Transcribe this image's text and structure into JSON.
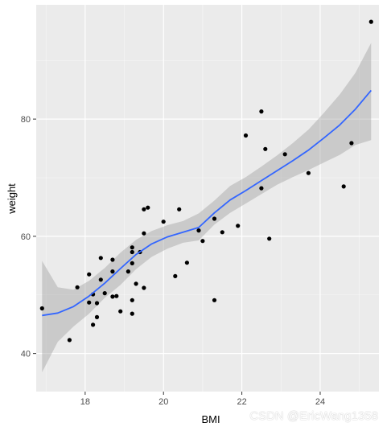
{
  "chart_data": {
    "type": "scatter",
    "title": "",
    "xlabel": "BMI",
    "ylabel": "weight",
    "xlim": [
      16.75,
      25.5
    ],
    "ylim": [
      33.5,
      99.5
    ],
    "x_ticks": [
      18,
      20,
      22,
      24
    ],
    "y_ticks": [
      40,
      60,
      80
    ],
    "x_tick_labels": [
      "18",
      "20",
      "22",
      "24"
    ],
    "y_tick_labels": [
      "40",
      "60",
      "80"
    ],
    "grid": true,
    "legend": "none",
    "points": [
      {
        "x": 16.9,
        "y": 47.7
      },
      {
        "x": 17.6,
        "y": 42.3
      },
      {
        "x": 17.8,
        "y": 51.3
      },
      {
        "x": 18.1,
        "y": 53.5
      },
      {
        "x": 18.1,
        "y": 48.7
      },
      {
        "x": 18.2,
        "y": 50.1
      },
      {
        "x": 18.2,
        "y": 44.9
      },
      {
        "x": 18.3,
        "y": 48.6
      },
      {
        "x": 18.3,
        "y": 46.2
      },
      {
        "x": 18.4,
        "y": 56.3
      },
      {
        "x": 18.4,
        "y": 52.6
      },
      {
        "x": 18.5,
        "y": 50.3
      },
      {
        "x": 18.7,
        "y": 56.0
      },
      {
        "x": 18.7,
        "y": 54.0
      },
      {
        "x": 18.7,
        "y": 49.7
      },
      {
        "x": 18.8,
        "y": 49.8
      },
      {
        "x": 18.9,
        "y": 47.2
      },
      {
        "x": 19.1,
        "y": 54.0
      },
      {
        "x": 19.2,
        "y": 58.1
      },
      {
        "x": 19.2,
        "y": 57.3
      },
      {
        "x": 19.2,
        "y": 55.4
      },
      {
        "x": 19.2,
        "y": 49.1
      },
      {
        "x": 19.2,
        "y": 46.8
      },
      {
        "x": 19.3,
        "y": 51.9
      },
      {
        "x": 19.4,
        "y": 57.3
      },
      {
        "x": 19.5,
        "y": 64.6
      },
      {
        "x": 19.5,
        "y": 60.5
      },
      {
        "x": 19.5,
        "y": 51.2
      },
      {
        "x": 19.6,
        "y": 64.9
      },
      {
        "x": 20.0,
        "y": 62.5
      },
      {
        "x": 20.3,
        "y": 53.2
      },
      {
        "x": 20.4,
        "y": 64.6
      },
      {
        "x": 20.6,
        "y": 55.5
      },
      {
        "x": 20.9,
        "y": 61.0
      },
      {
        "x": 21.0,
        "y": 59.2
      },
      {
        "x": 21.3,
        "y": 63.0
      },
      {
        "x": 21.3,
        "y": 49.1
      },
      {
        "x": 21.5,
        "y": 60.7
      },
      {
        "x": 21.9,
        "y": 61.8
      },
      {
        "x": 22.1,
        "y": 77.2
      },
      {
        "x": 22.5,
        "y": 81.3
      },
      {
        "x": 22.5,
        "y": 68.2
      },
      {
        "x": 22.6,
        "y": 74.9
      },
      {
        "x": 22.7,
        "y": 59.6
      },
      {
        "x": 23.1,
        "y": 74.0
      },
      {
        "x": 23.7,
        "y": 70.8
      },
      {
        "x": 24.6,
        "y": 68.5
      },
      {
        "x": 24.8,
        "y": 75.9
      },
      {
        "x": 25.3,
        "y": 96.6
      }
    ],
    "smooth": {
      "method": "loess",
      "x": [
        16.9,
        17.3,
        17.7,
        18.1,
        18.5,
        18.9,
        19.3,
        19.7,
        20.1,
        20.5,
        20.9,
        21.3,
        21.7,
        22.1,
        22.5,
        22.9,
        23.3,
        23.7,
        24.1,
        24.5,
        24.9,
        25.3
      ],
      "y": [
        46.5,
        46.9,
        48.0,
        49.8,
        52.0,
        54.5,
        56.9,
        58.7,
        59.9,
        60.7,
        61.5,
        64.0,
        66.2,
        67.8,
        69.5,
        71.2,
        72.9,
        74.7,
        76.8,
        79.0,
        81.7,
        84.9
      ],
      "lower": [
        36.8,
        42.0,
        44.6,
        46.8,
        49.5,
        51.7,
        54.4,
        56.5,
        57.9,
        58.9,
        59.3,
        62.0,
        64.0,
        65.6,
        67.2,
        68.8,
        70.1,
        71.3,
        72.6,
        73.9,
        75.6,
        76.4
      ],
      "upper": [
        55.8,
        51.3,
        50.9,
        52.4,
        54.6,
        57.2,
        59.4,
        60.9,
        61.9,
        62.6,
        63.9,
        66.1,
        68.6,
        70.1,
        71.9,
        73.8,
        75.9,
        78.2,
        81.1,
        84.2,
        87.9,
        93.0
      ]
    },
    "colors": {
      "panel": "#EBEBEB",
      "grid_major": "#FFFFFF",
      "point": "#000000",
      "line": "#3366FF",
      "ribbon": "#999999"
    }
  },
  "watermark": "CSDN @EricWang1358"
}
